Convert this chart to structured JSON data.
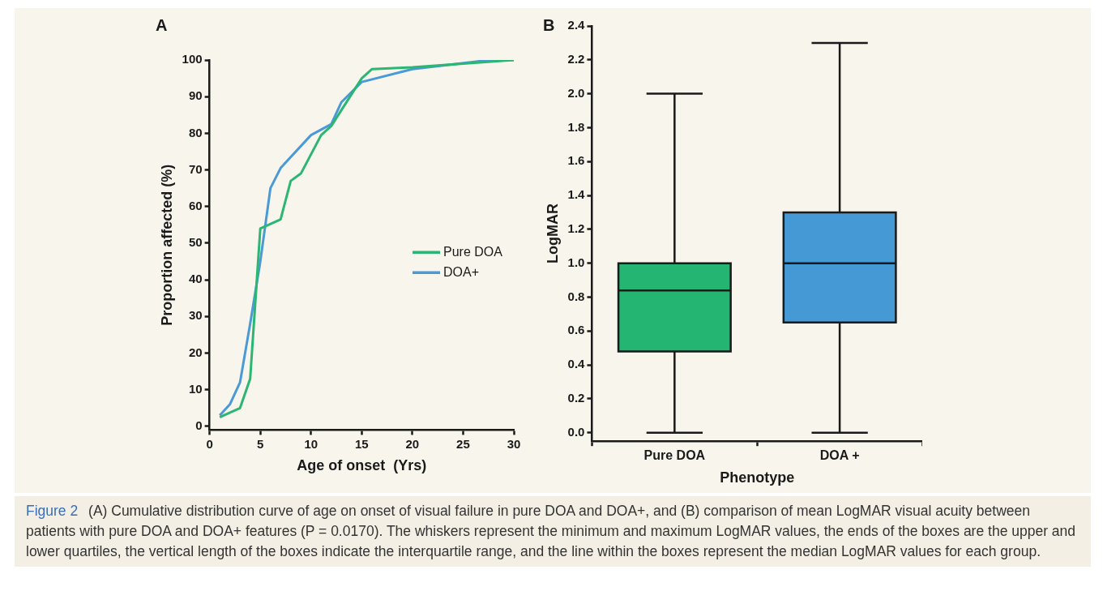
{
  "chart_data": [
    {
      "type": "line",
      "title": "A",
      "xlabel": "Age of onset  (Yrs)",
      "ylabel": "Proportion affected (%)",
      "xlim": [
        0,
        30
      ],
      "xticks": [
        0,
        5,
        10,
        15,
        20,
        25,
        30
      ],
      "ylim": [
        -1,
        100
      ],
      "yticks": [
        0,
        10,
        20,
        30,
        40,
        50,
        60,
        70,
        80,
        90,
        100
      ],
      "grid": false,
      "legend": "right",
      "marker": "none",
      "line_style": "solid",
      "series": [
        {
          "name": "Pure DOA",
          "color": "#2bb673",
          "x": [
            1,
            3,
            4,
            5,
            7,
            8,
            9,
            11,
            12,
            15,
            16,
            20,
            25,
            30
          ],
          "values": [
            2.5,
            5,
            13,
            54,
            56.5,
            67,
            69,
            79.5,
            82,
            95,
            97.5,
            98,
            99,
            100
          ]
        },
        {
          "name": "DOA+",
          "color": "#4a9ad8",
          "x": [
            1,
            2,
            3,
            4,
            5,
            6,
            7,
            10,
            12,
            13,
            15,
            20,
            27,
            30
          ],
          "values": [
            3,
            6,
            12,
            28,
            45,
            65,
            70.5,
            79.5,
            82.5,
            88.5,
            94,
            97.5,
            99.8,
            100
          ]
        }
      ]
    },
    {
      "type": "box",
      "title": "B",
      "xlabel": "Phenotype",
      "ylabel": "LogMAR",
      "categories": [
        "Pure DOA",
        "DOA +"
      ],
      "colors": [
        "#25b573",
        "#4599d5"
      ],
      "ylim": [
        -0.05,
        2.4
      ],
      "yticks": [
        {
          "value": 0,
          "label": "0.0"
        },
        {
          "value": 0.2,
          "label": "0.2"
        },
        {
          "value": 0.4,
          "label": "0.4"
        },
        {
          "value": 0.6,
          "label": "0.6"
        },
        {
          "value": 0.8,
          "label": "0.8"
        },
        {
          "value": 1.0,
          "label": "1.0"
        },
        {
          "value": 1.2,
          "label": "1.2"
        },
        {
          "value": 1.4,
          "label": "1.4"
        },
        {
          "value": 1.6,
          "label": "1.6"
        },
        {
          "value": 1.8,
          "label": "1.8"
        },
        {
          "value": 2.0,
          "label": "2.0"
        },
        {
          "value": 2.2,
          "label": "2.2"
        },
        {
          "value": 2.4,
          "label": "2.4"
        }
      ],
      "grid": false,
      "legend": false,
      "boxes": [
        {
          "low": 0,
          "q1": 0.48,
          "median": 0.84,
          "q3": 1.0,
          "high": 2.0
        },
        {
          "low": 0,
          "q1": 0.65,
          "median": 1.0,
          "q3": 1.3,
          "high": 2.3
        }
      ],
      "annotations": [
        "Figure 2",
        "(A) Cumulative distribution curve of age on onset of visual failure in pure DOA and DOA+, and (B) comparison of mean LogMAR visual acuity between patients with pure DOA and DOA+ features (P = 0.0170). The whiskers represent the minimum and maximum LogMAR values, the ends of the boxes are the upper and lower quartiles, the vertical length of the boxes indicate the interquartile range, and the line within the boxes represent the median LogMAR values for each group."
      ]
    }
  ]
}
